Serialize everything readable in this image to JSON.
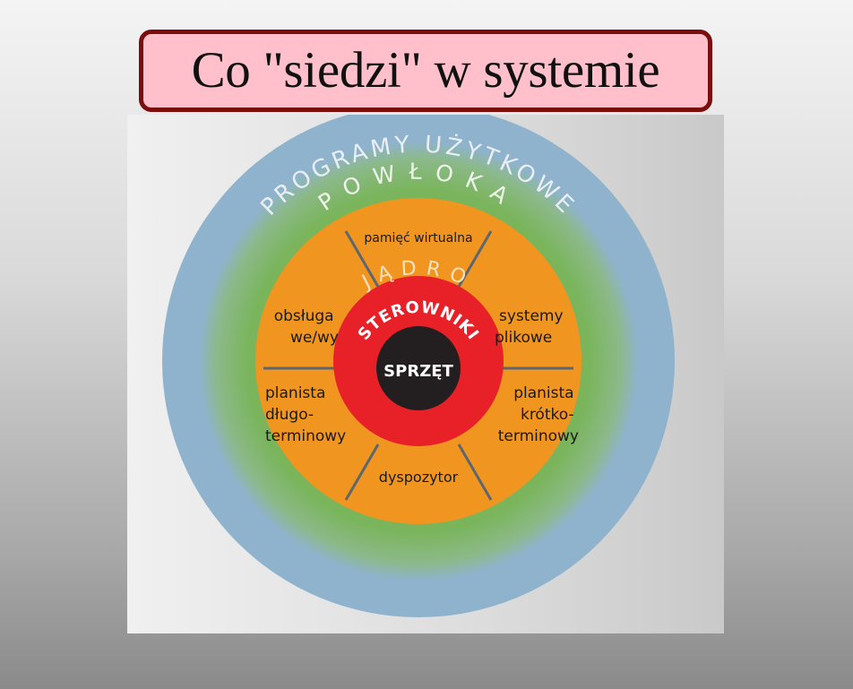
{
  "title": "Co \"siedzi\" w systemie",
  "diagram": {
    "outer_ring": "PROGRAMY UŻYTKOWE",
    "shell_ring": "POWŁOKA",
    "kernel_ring": "JĄDRO",
    "drivers_ring": "STEROWNIKI",
    "core": "SPRZĘT",
    "segments": {
      "top": "pamięć wirtualna",
      "upper_left": [
        "obsługa",
        "we/wy"
      ],
      "upper_right": [
        "systemy",
        "plikowe"
      ],
      "lower_left": [
        "planista",
        "długo-",
        "terminowy"
      ],
      "lower_right": [
        "planista",
        "krótko-",
        "terminowy"
      ],
      "bottom": "dyspozytor"
    },
    "colors": {
      "applications": "#8fb3cc",
      "shell": "#7ab55c",
      "kernel": "#f0951f",
      "drivers": "#e82027",
      "hardware": "#231f20"
    }
  }
}
